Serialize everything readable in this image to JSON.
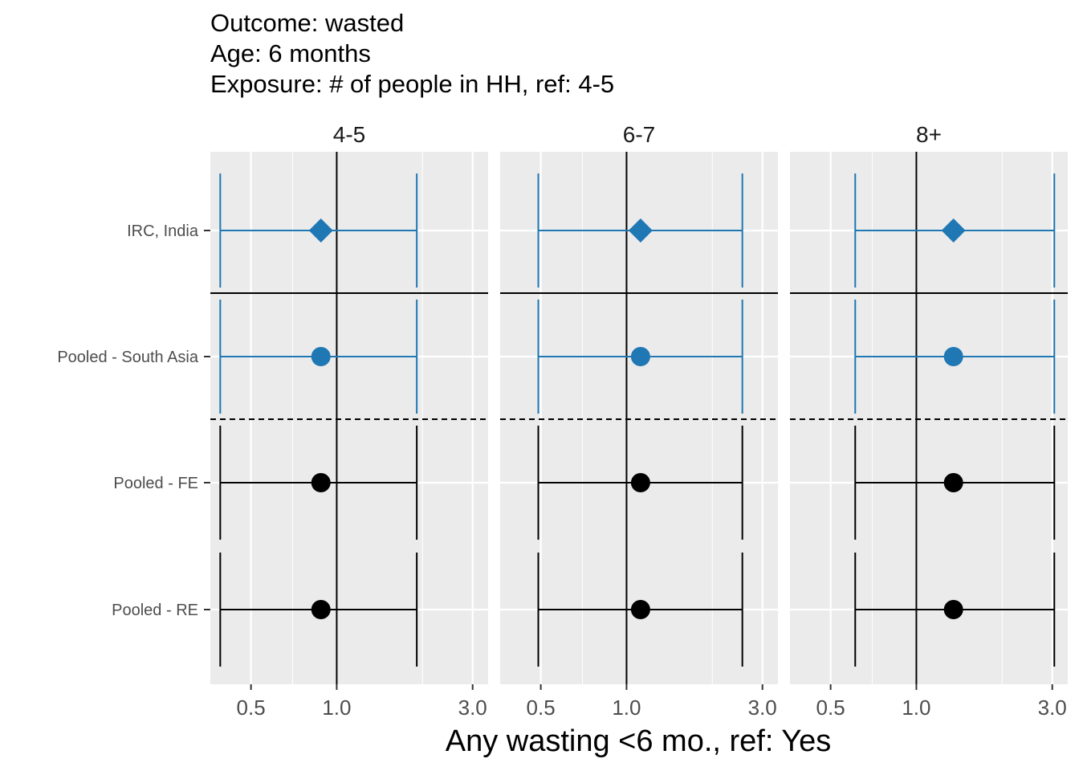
{
  "title_lines": [
    "Outcome: wasted",
    "Age: 6 months",
    "Exposure: # of people in HH, ref: 4-5"
  ],
  "chart_data": {
    "type": "forest",
    "xlabel": "Any wasting  <6 mo., ref: Yes",
    "x_scale": "log",
    "xlim": [
      0.36,
      3.4
    ],
    "x_ticks": [
      0.5,
      1.0,
      3.0
    ],
    "x_tick_labels": [
      "0.5",
      "1.0",
      "3.0"
    ],
    "x_minor": [
      0.7,
      2.0
    ],
    "reference_line": 1.0,
    "rows": [
      "IRC, India",
      "Pooled - South Asia",
      "Pooled - FE",
      "Pooled - RE"
    ],
    "facets": [
      {
        "label": "4-5",
        "estimates": [
          {
            "row": "IRC, India",
            "est": 0.88,
            "lower": 0.39,
            "upper": 1.91,
            "color": "#1F77B4",
            "shape": "diamond"
          },
          {
            "row": "Pooled - South Asia",
            "est": 0.88,
            "lower": 0.39,
            "upper": 1.91,
            "color": "#1F77B4",
            "shape": "circle"
          },
          {
            "row": "Pooled - FE",
            "est": 0.88,
            "lower": 0.39,
            "upper": 1.91,
            "color": "#000000",
            "shape": "circle"
          },
          {
            "row": "Pooled - RE",
            "est": 0.88,
            "lower": 0.39,
            "upper": 1.91,
            "color": "#000000",
            "shape": "circle"
          }
        ]
      },
      {
        "label": "6-7",
        "estimates": [
          {
            "row": "IRC, India",
            "est": 1.12,
            "lower": 0.49,
            "upper": 2.55,
            "color": "#1F77B4",
            "shape": "diamond"
          },
          {
            "row": "Pooled - South Asia",
            "est": 1.12,
            "lower": 0.49,
            "upper": 2.55,
            "color": "#1F77B4",
            "shape": "circle"
          },
          {
            "row": "Pooled - FE",
            "est": 1.12,
            "lower": 0.49,
            "upper": 2.55,
            "color": "#000000",
            "shape": "circle"
          },
          {
            "row": "Pooled - RE",
            "est": 1.12,
            "lower": 0.49,
            "upper": 2.55,
            "color": "#000000",
            "shape": "circle"
          }
        ]
      },
      {
        "label": "8+",
        "estimates": [
          {
            "row": "IRC, India",
            "est": 1.35,
            "lower": 0.61,
            "upper": 3.05,
            "color": "#1F77B4",
            "shape": "diamond"
          },
          {
            "row": "Pooled - South Asia",
            "est": 1.35,
            "lower": 0.61,
            "upper": 3.05,
            "color": "#1F77B4",
            "shape": "circle"
          },
          {
            "row": "Pooled - FE",
            "est": 1.35,
            "lower": 0.61,
            "upper": 3.05,
            "color": "#000000",
            "shape": "circle"
          },
          {
            "row": "Pooled - RE",
            "est": 1.35,
            "lower": 0.61,
            "upper": 3.05,
            "color": "#000000",
            "shape": "circle"
          }
        ]
      }
    ],
    "panel_background": "#EBEBEB",
    "grid_color": "#FFFFFF"
  }
}
